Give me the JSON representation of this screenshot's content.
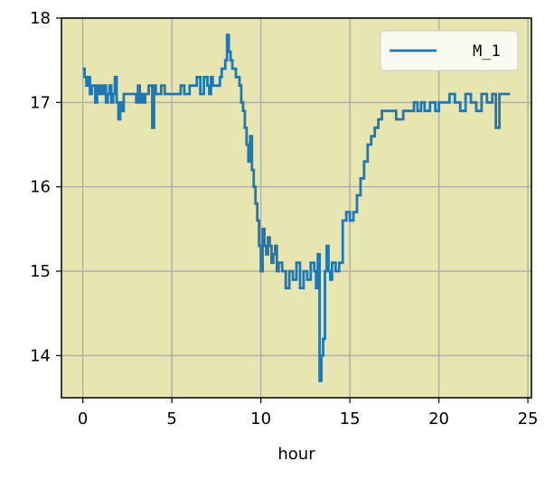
{
  "chart_data": {
    "type": "line",
    "title": "",
    "xlabel": "hour",
    "ylabel": "",
    "xlim": [
      -1.2,
      25.2
    ],
    "ylim": [
      13.5,
      18.0
    ],
    "x_ticks": [
      0,
      5,
      10,
      15,
      20,
      25
    ],
    "y_ticks": [
      14,
      15,
      16,
      17,
      18
    ],
    "grid": true,
    "legend_position": "top-right",
    "plot_background": "#e8e6b0",
    "series": [
      {
        "name": "M_1",
        "color": "#1f77b4",
        "x": [
          0,
          0.1,
          0.2,
          0.3,
          0.4,
          0.5,
          0.6,
          0.7,
          0.8,
          0.9,
          1.0,
          1.1,
          1.2,
          1.3,
          1.4,
          1.5,
          1.6,
          1.7,
          1.8,
          1.9,
          2.0,
          2.1,
          2.2,
          2.3,
          2.5,
          2.8,
          3.0,
          3.1,
          3.2,
          3.3,
          3.4,
          3.5,
          3.7,
          3.9,
          4.0,
          4.1,
          4.2,
          4.4,
          4.6,
          4.8,
          5.0,
          5.2,
          5.5,
          5.7,
          6.0,
          6.2,
          6.4,
          6.6,
          6.8,
          7.0,
          7.1,
          7.2,
          7.3,
          7.5,
          7.7,
          7.8,
          8.0,
          8.1,
          8.2,
          8.3,
          8.4,
          8.5,
          8.6,
          8.7,
          8.8,
          8.9,
          9.0,
          9.1,
          9.2,
          9.3,
          9.4,
          9.5,
          9.6,
          9.7,
          9.8,
          9.9,
          10.0,
          10.1,
          10.2,
          10.3,
          10.4,
          10.5,
          10.6,
          10.7,
          10.8,
          10.9,
          11.0,
          11.2,
          11.4,
          11.6,
          11.8,
          12.0,
          12.2,
          12.4,
          12.6,
          12.8,
          13.0,
          13.1,
          13.2,
          13.3,
          13.4,
          13.5,
          13.6,
          13.7,
          13.8,
          13.9,
          14.0,
          14.2,
          14.4,
          14.6,
          14.8,
          15.0,
          15.2,
          15.4,
          15.6,
          15.8,
          16.0,
          16.2,
          16.4,
          16.6,
          16.8,
          17.0,
          17.3,
          17.6,
          18.0,
          18.3,
          18.6,
          18.8,
          19.0,
          19.2,
          19.5,
          19.8,
          20.0,
          20.3,
          20.6,
          20.9,
          21.2,
          21.5,
          21.8,
          22.1,
          22.4,
          22.7,
          23.0,
          23.2,
          23.4,
          23.6,
          23.8,
          24.0
        ],
        "y": [
          17.4,
          17.3,
          17.2,
          17.3,
          17.1,
          17.2,
          17.2,
          17.0,
          17.2,
          17.1,
          17.2,
          17.1,
          17.2,
          17.0,
          17.1,
          17.2,
          17.0,
          17.1,
          17.3,
          17.0,
          16.8,
          17.0,
          16.9,
          17.1,
          17.1,
          17.1,
          17.0,
          17.2,
          17.0,
          17.1,
          17.0,
          17.1,
          17.2,
          16.7,
          17.2,
          17.1,
          17.1,
          17.2,
          17.1,
          17.1,
          17.1,
          17.1,
          17.2,
          17.1,
          17.2,
          17.2,
          17.3,
          17.1,
          17.3,
          17.2,
          17.1,
          17.3,
          17.2,
          17.2,
          17.3,
          17.4,
          17.5,
          17.8,
          17.6,
          17.5,
          17.4,
          17.4,
          17.3,
          17.3,
          17.2,
          17.0,
          16.9,
          16.7,
          16.5,
          16.3,
          16.6,
          16.2,
          16.0,
          15.8,
          15.6,
          15.3,
          15.0,
          15.5,
          15.3,
          15.2,
          15.4,
          15.3,
          15.1,
          15.2,
          15.3,
          15.0,
          15.1,
          15.0,
          14.8,
          15.0,
          14.9,
          15.1,
          14.8,
          15.0,
          14.9,
          15.1,
          15.0,
          14.8,
          15.2,
          13.7,
          14.0,
          14.2,
          15.0,
          15.3,
          15.0,
          14.9,
          15.1,
          15.0,
          15.1,
          15.6,
          15.7,
          15.6,
          15.7,
          15.9,
          16.1,
          16.3,
          16.5,
          16.6,
          16.7,
          16.8,
          16.9,
          16.9,
          16.9,
          16.8,
          16.9,
          16.9,
          17.0,
          16.9,
          17.0,
          16.9,
          17.0,
          16.9,
          17.0,
          17.0,
          17.1,
          17.0,
          16.9,
          17.1,
          17.0,
          16.9,
          17.1,
          17.0,
          17.1,
          16.7,
          17.1,
          17.1,
          17.1,
          17.1
        ]
      }
    ]
  }
}
